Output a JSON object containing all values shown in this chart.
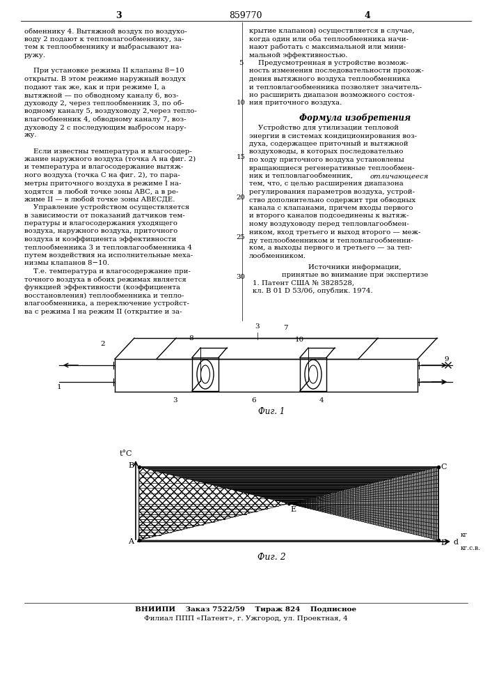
{
  "patent_number": "859770",
  "page_left": "3",
  "page_right": "4",
  "bg_color": "#ffffff",
  "text_color": "#000000",
  "fig1_caption": "Фиг. 1",
  "fig2_caption": "Фиг. 2",
  "footer_line1": "ВНИИПИ    Заказ 7522/59    Тираж 824    Подписное",
  "footer_line2": "Филиал ППП «Патент», г. Ужгород, ул. Проектная, 4",
  "left_col": [
    [
      "обменнику 4. Вытяжной воздух по воздухо-",
      false
    ],
    [
      "воду 2 подают к тепловлагообменнику, за-",
      false
    ],
    [
      "тем к теплообменнику и выбрасывают на-",
      false
    ],
    [
      "ружу.",
      false
    ],
    [
      "",
      false
    ],
    [
      "    При установке режима II клапаны 8−10",
      false
    ],
    [
      "открыты. В этом режиме наружный воздух",
      false
    ],
    [
      "подают так же, как и при режиме I, а",
      false
    ],
    [
      "вытяжной — по обводному каналу 6, воз-",
      false
    ],
    [
      "духоводу 2, через теплообменник 3, по об-",
      false
    ],
    [
      "водному каналу 5, воздуховоду 2,через тепло-",
      false
    ],
    [
      "влагообменник 4, обводному каналу 7, воз-",
      false
    ],
    [
      "духоводу 2 с последующим выбросом нару-",
      false
    ],
    [
      "жу.",
      false
    ],
    [
      "",
      false
    ],
    [
      "    Если известны температура и влагосодер-",
      false
    ],
    [
      "жание наружного воздуха (точка А на фиг. 2)",
      false
    ],
    [
      "и температура и влагосодержание вытяж-",
      false
    ],
    [
      "ного воздуха (точка С на фиг. 2), то пара-",
      false
    ],
    [
      "метры приточного воздуха в режиме I на-",
      false
    ],
    [
      "ходятся  в любой точке зоны АВС, а в ре-",
      false
    ],
    [
      "жиме II — в любой точке зоны АВЕСДЕ.",
      false
    ],
    [
      "    Управление устройством осуществляется",
      false
    ],
    [
      "в зависимости от показаний датчиков тем-",
      false
    ],
    [
      "пературы и влагосодержания уходящего",
      false
    ],
    [
      "воздуха, наружного воздуха, приточного",
      false
    ],
    [
      "воздуха и коэффициента эффективности",
      false
    ],
    [
      "теплообменника 3 и тепловлагообменника 4",
      false
    ],
    [
      "путем воздействия на исполнительные меха-",
      false
    ],
    [
      "низмы клапанов 8−10.",
      false
    ],
    [
      "    Т.е. температура и влагосодержание при-",
      false
    ],
    [
      "точного воздуха в обоих режимах является",
      false
    ],
    [
      "функцией эффективности (коэффициента",
      false
    ],
    [
      "восстановления) теплообменника и тепло-",
      false
    ],
    [
      "влагообменника, а переключение устройст-",
      false
    ],
    [
      "ва с режима I на режим II (открытие и за-",
      false
    ]
  ],
  "right_col1": [
    [
      "крытие клапанов) осуществляется в случае,"
    ],
    [
      "когда один или оба теплообменника начи-"
    ],
    [
      "нают работать с максимальной или мини-"
    ],
    [
      "мальной эффективностью."
    ],
    [
      "    Предусмотренная в устройстве возмож-"
    ],
    [
      "ность изменения последовательности прохож-"
    ],
    [
      "дения вытяжного воздуха теплообменника"
    ],
    [
      "и тепловлагообменника позволяет значитель-"
    ],
    [
      "но расширить диапазон возможного состоя-"
    ],
    [
      "ния приточного воздуха."
    ]
  ]
}
